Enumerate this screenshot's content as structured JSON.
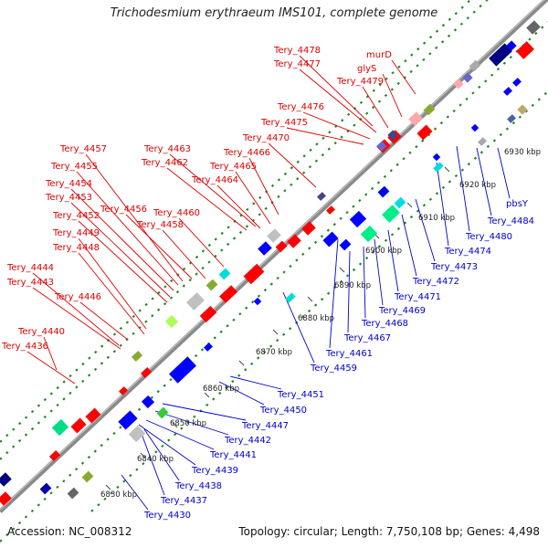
{
  "title": "Trichodesmium erythraeum IMS101, complete genome",
  "footer": {
    "accession": "Accession: NC_008312",
    "topology": "Topology: circular; Length: 7,750,108 bp; Genes: 4,498"
  },
  "colors": {
    "forward_label": "#dd0000",
    "reverse_label": "#0000cc",
    "backbone": "#8a8a8a",
    "dotted_track": "#228822"
  },
  "scale_labels": [
    {
      "text": "6830 kbp"
    },
    {
      "text": "6840 kbp"
    },
    {
      "text": "6850 kbp"
    },
    {
      "text": "6860 kbp"
    },
    {
      "text": "6870 kbp"
    },
    {
      "text": "6880 kbp"
    },
    {
      "text": "6890 kbp"
    },
    {
      "text": "6900 kbp"
    },
    {
      "text": "6910 kbp"
    },
    {
      "text": "6920 kbp"
    },
    {
      "text": "6930 kbp"
    }
  ],
  "forward_labels": [
    {
      "text": "Tery_4478"
    },
    {
      "text": "Tery_4477"
    },
    {
      "text": "murD"
    },
    {
      "text": "glyS"
    },
    {
      "text": "Tery_4479"
    },
    {
      "text": "Tery_4476"
    },
    {
      "text": "Tery_4475"
    },
    {
      "text": "Tery_4470"
    },
    {
      "text": "Tery_4457"
    },
    {
      "text": "Tery_4463"
    },
    {
      "text": "Tery_4466"
    },
    {
      "text": "Tery_4462"
    },
    {
      "text": "Tery_4465"
    },
    {
      "text": "Tery_4455"
    },
    {
      "text": "Tery_4464"
    },
    {
      "text": "Tery_4454"
    },
    {
      "text": "Tery_4453"
    },
    {
      "text": "Tery_4456"
    },
    {
      "text": "Tery_4460"
    },
    {
      "text": "Tery_4452"
    },
    {
      "text": "Tery_4458"
    },
    {
      "text": "Tery_4449"
    },
    {
      "text": "Tery_4448"
    },
    {
      "text": "Tery_4444"
    },
    {
      "text": "Tery_4443"
    },
    {
      "text": "Tery_4446"
    },
    {
      "text": "Tery_4440"
    },
    {
      "text": "Tery_4436"
    }
  ],
  "reverse_labels": [
    {
      "text": "pbsY"
    },
    {
      "text": "Tery_4484"
    },
    {
      "text": "Tery_4480"
    },
    {
      "text": "Tery_4474"
    },
    {
      "text": "Tery_4473"
    },
    {
      "text": "Tery_4472"
    },
    {
      "text": "Tery_4471"
    },
    {
      "text": "Tery_4469"
    },
    {
      "text": "Tery_4468"
    },
    {
      "text": "Tery_4467"
    },
    {
      "text": "Tery_4461"
    },
    {
      "text": "Tery_4459"
    },
    {
      "text": "Tery_4451"
    },
    {
      "text": "Tery_4450"
    },
    {
      "text": "Tery_4447"
    },
    {
      "text": "Tery_4442"
    },
    {
      "text": "Tery_4441"
    },
    {
      "text": "Tery_4439"
    },
    {
      "text": "Tery_4438"
    },
    {
      "text": "Tery_4437"
    },
    {
      "text": "Tery_4430"
    }
  ]
}
